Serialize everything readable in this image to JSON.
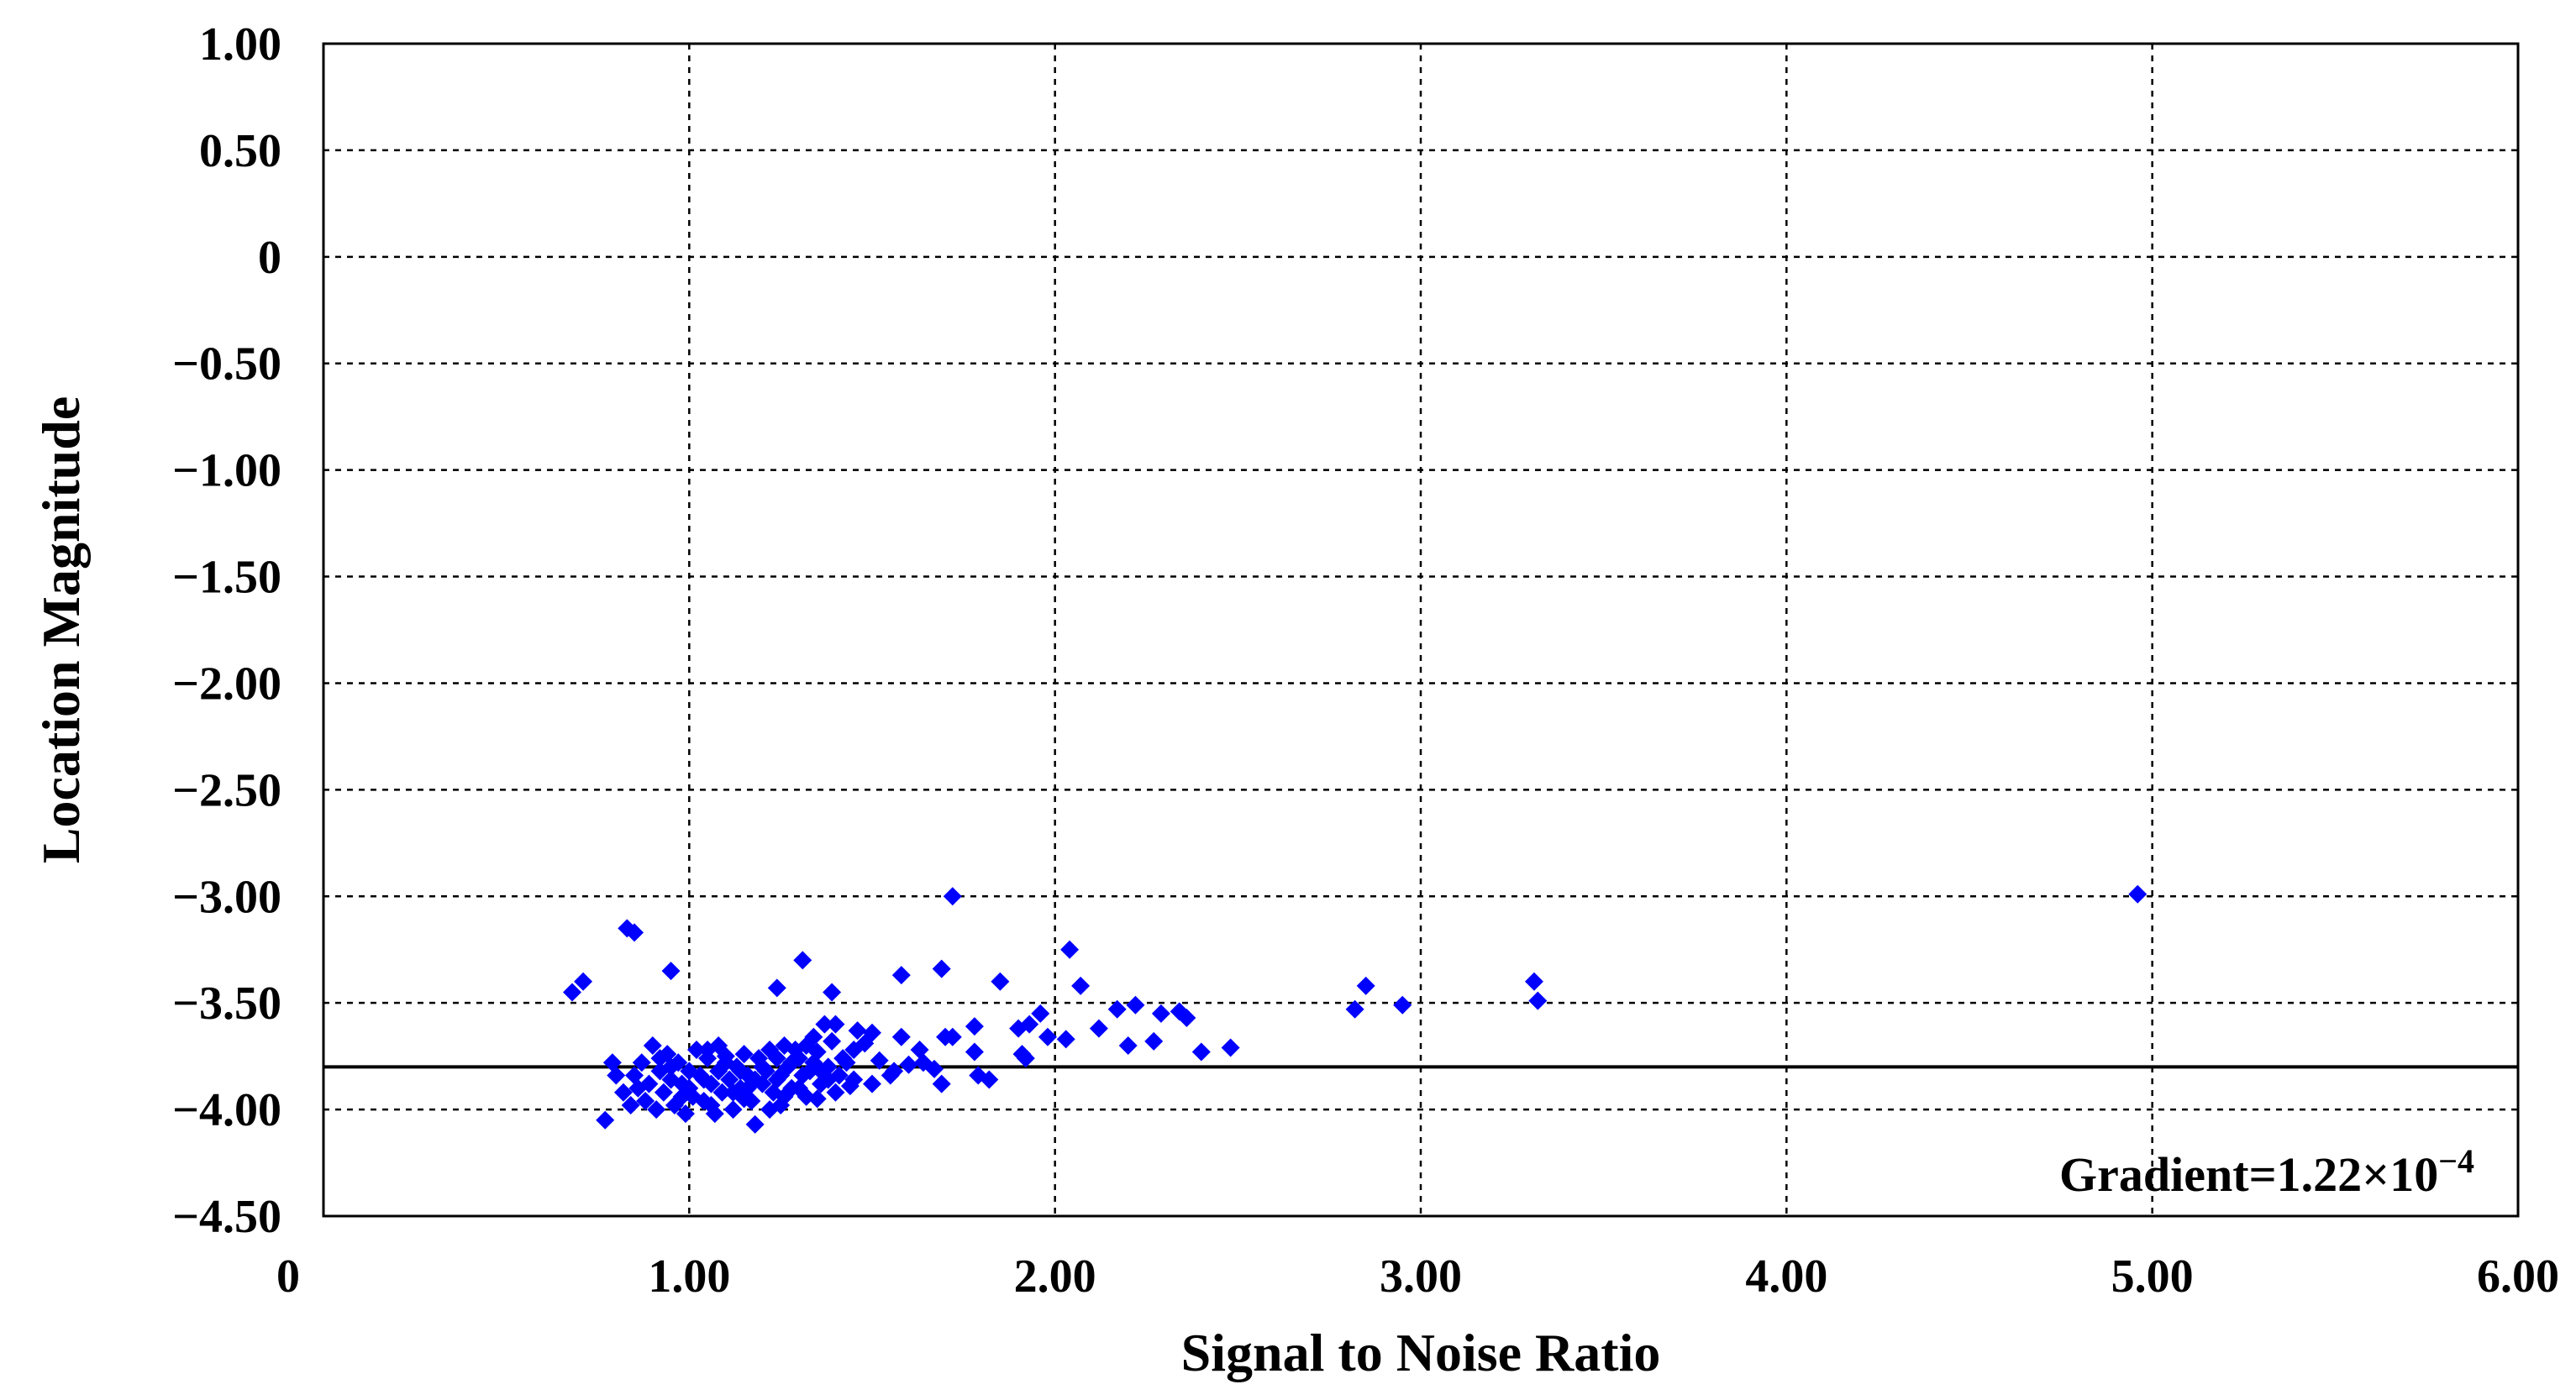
{
  "chart_data": {
    "type": "scatter",
    "xlabel": "Signal to Noise Ratio",
    "ylabel": "Location Magnitude",
    "xlim": [
      0,
      6
    ],
    "ylim": [
      -4.5,
      1.0
    ],
    "x_ticks": [
      "0",
      "1.00",
      "2.00",
      "3.00",
      "4.00",
      "5.00",
      "6.00"
    ],
    "x_tick_values": [
      0,
      1,
      2,
      3,
      4,
      5,
      6
    ],
    "y_ticks": [
      "1.00",
      "0.50",
      "0",
      "−0.50",
      "−1.00",
      "−1.50",
      "−2.00",
      "−2.50",
      "−3.00",
      "−3.50",
      "−4.00",
      "−4.50"
    ],
    "y_tick_values": [
      1.0,
      0.5,
      0,
      -0.5,
      -1.0,
      -1.5,
      -2.0,
      -2.5,
      -3.0,
      -3.5,
      -4.0,
      -4.5
    ],
    "grid": true,
    "reference_line_y": -3.8,
    "annotation": {
      "prefix": "Gradient=1.22×10",
      "superscript": "−4",
      "position": "bottom-right"
    },
    "marker_color": "#0000ff",
    "points": [
      [
        0.68,
        -3.45
      ],
      [
        0.71,
        -3.4
      ],
      [
        0.83,
        -3.15
      ],
      [
        0.85,
        -3.17
      ],
      [
        0.95,
        -3.35
      ],
      [
        1.24,
        -3.43
      ],
      [
        1.31,
        -3.3
      ],
      [
        1.39,
        -3.45
      ],
      [
        1.58,
        -3.37
      ],
      [
        1.69,
        -3.34
      ],
      [
        1.72,
        -3.0
      ],
      [
        1.85,
        -3.4
      ],
      [
        2.04,
        -3.25
      ],
      [
        2.07,
        -3.42
      ],
      [
        4.96,
        -2.99
      ],
      [
        2.85,
        -3.42
      ],
      [
        2.82,
        -3.53
      ],
      [
        2.95,
        -3.51
      ],
      [
        3.31,
        -3.4
      ],
      [
        3.32,
        -3.49
      ],
      [
        2.48,
        -3.71
      ],
      [
        2.4,
        -3.73
      ],
      [
        2.36,
        -3.57
      ],
      [
        2.34,
        -3.54
      ],
      [
        2.29,
        -3.55
      ],
      [
        2.27,
        -3.68
      ],
      [
        2.22,
        -3.51
      ],
      [
        2.2,
        -3.7
      ],
      [
        2.17,
        -3.53
      ],
      [
        2.12,
        -3.62
      ],
      [
        2.03,
        -3.67
      ],
      [
        1.98,
        -3.66
      ],
      [
        1.96,
        -3.55
      ],
      [
        1.93,
        -3.6
      ],
      [
        1.9,
        -3.62
      ],
      [
        1.91,
        -3.74
      ],
      [
        1.92,
        -3.76
      ],
      [
        1.82,
        -3.86
      ],
      [
        1.79,
        -3.84
      ],
      [
        1.78,
        -3.73
      ],
      [
        1.78,
        -3.61
      ],
      [
        1.72,
        -3.66
      ],
      [
        1.7,
        -3.66
      ],
      [
        1.69,
        -3.88
      ],
      [
        1.67,
        -3.81
      ],
      [
        1.64,
        -3.78
      ],
      [
        1.63,
        -3.72
      ],
      [
        1.6,
        -3.79
      ],
      [
        1.58,
        -3.66
      ],
      [
        1.56,
        -3.82
      ],
      [
        1.52,
        -3.77
      ],
      [
        1.5,
        -3.64
      ],
      [
        1.48,
        -3.69
      ],
      [
        1.46,
        -3.63
      ],
      [
        1.45,
        -3.72
      ],
      [
        1.44,
        -3.89
      ],
      [
        1.43,
        -3.78
      ],
      [
        1.41,
        -3.84
      ],
      [
        1.4,
        -3.6
      ],
      [
        1.39,
        -3.68
      ],
      [
        1.38,
        -3.8
      ],
      [
        1.37,
        -3.6
      ],
      [
        1.36,
        -3.88
      ],
      [
        1.35,
        -3.73
      ],
      [
        1.34,
        -3.66
      ],
      [
        1.33,
        -3.82
      ],
      [
        1.32,
        -3.7
      ],
      [
        1.31,
        -3.84
      ],
      [
        1.3,
        -3.76
      ],
      [
        1.29,
        -3.72
      ],
      [
        1.28,
        -3.9
      ],
      [
        1.27,
        -3.8
      ],
      [
        1.26,
        -3.7
      ],
      [
        1.25,
        -3.84
      ],
      [
        1.24,
        -3.76
      ],
      [
        1.23,
        -3.92
      ],
      [
        1.22,
        -3.72
      ],
      [
        1.21,
        -3.82
      ],
      [
        1.2,
        -3.88
      ],
      [
        1.19,
        -3.76
      ],
      [
        1.18,
        -4.07
      ],
      [
        1.17,
        -3.96
      ],
      [
        1.16,
        -3.84
      ],
      [
        1.15,
        -3.74
      ],
      [
        1.14,
        -3.9
      ],
      [
        1.13,
        -3.8
      ],
      [
        1.12,
        -4.0
      ],
      [
        1.11,
        -3.86
      ],
      [
        1.1,
        -3.78
      ],
      [
        1.09,
        -3.92
      ],
      [
        1.08,
        -3.82
      ],
      [
        1.07,
        -4.02
      ],
      [
        1.06,
        -3.88
      ],
      [
        1.05,
        -3.76
      ],
      [
        1.04,
        -3.96
      ],
      [
        1.03,
        -3.84
      ],
      [
        1.02,
        -3.72
      ],
      [
        1.01,
        -3.94
      ],
      [
        1.0,
        -3.82
      ],
      [
        0.99,
        -4.02
      ],
      [
        0.98,
        -3.88
      ],
      [
        0.97,
        -3.78
      ],
      [
        0.96,
        -3.98
      ],
      [
        0.95,
        -3.86
      ],
      [
        0.94,
        -3.74
      ],
      [
        0.93,
        -3.92
      ],
      [
        0.92,
        -3.82
      ],
      [
        0.91,
        -4.0
      ],
      [
        0.9,
        -3.7
      ],
      [
        0.89,
        -3.88
      ],
      [
        0.88,
        -3.96
      ],
      [
        0.87,
        -3.78
      ],
      [
        0.86,
        -3.9
      ],
      [
        0.85,
        -3.84
      ],
      [
        0.84,
        -3.98
      ],
      [
        0.82,
        -3.92
      ],
      [
        0.8,
        -3.84
      ],
      [
        0.79,
        -3.78
      ],
      [
        0.77,
        -4.05
      ],
      [
        1.05,
        -3.72
      ],
      [
        1.1,
        -3.75
      ],
      [
        1.15,
        -3.95
      ],
      [
        1.2,
        -3.8
      ],
      [
        1.25,
        -3.98
      ],
      [
        1.3,
        -3.9
      ],
      [
        1.35,
        -3.95
      ],
      [
        1.4,
        -3.92
      ],
      [
        1.45,
        -3.86
      ],
      [
        1.5,
        -3.88
      ],
      [
        1.55,
        -3.84
      ],
      [
        0.95,
        -3.8
      ],
      [
        1.0,
        -3.9
      ],
      [
        1.08,
        -3.7
      ],
      [
        1.12,
        -3.92
      ],
      [
        1.18,
        -3.86
      ],
      [
        1.22,
        -4.0
      ],
      [
        1.28,
        -3.78
      ],
      [
        1.32,
        -3.94
      ],
      [
        1.38,
        -3.86
      ],
      [
        1.42,
        -3.76
      ],
      [
        0.92,
        -3.76
      ],
      [
        0.98,
        -3.94
      ],
      [
        1.04,
        -3.86
      ],
      [
        1.06,
        -3.98
      ],
      [
        1.14,
        -3.82
      ],
      [
        1.16,
        -3.9
      ],
      [
        1.24,
        -3.86
      ],
      [
        1.26,
        -3.94
      ],
      [
        1.34,
        -3.78
      ],
      [
        1.36,
        -3.82
      ]
    ]
  }
}
